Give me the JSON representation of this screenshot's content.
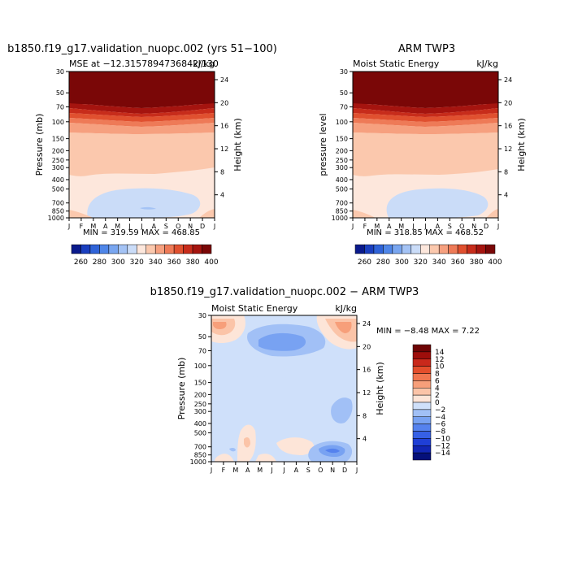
{
  "palettes": {
    "abs": [
      "#0a1a8c",
      "#1a3fbf",
      "#2f63d8",
      "#4f86e8",
      "#79a6f0",
      "#a4c3f5",
      "#cadcf8",
      "#fde7dc",
      "#fbc8ad",
      "#f6a07f",
      "#ee7a57",
      "#e0502f",
      "#c72c1b",
      "#a5140f",
      "#7a0707"
    ],
    "diff": [
      "#05107a",
      "#1226b4",
      "#1f3fd6",
      "#3660e6",
      "#5582ee",
      "#78a2f2",
      "#a1c0f6",
      "#cfe0fa",
      "#fde5d8",
      "#fbc4a8",
      "#f79f7a",
      "#f07650",
      "#e34e2c",
      "#c9291b",
      "#9e0e0b",
      "#6e0405"
    ]
  },
  "chart_data": [
    {
      "type": "contour",
      "id": "model",
      "title": "b1850.f19_g17.validation_nuopc.002 (yrs 51−100)",
      "subtitle_left": "MSE at −12.3157894736842/130",
      "subtitle_right": "kJ/kg",
      "ylabel": "Pressure (mb)",
      "ylabel_right": "Height (km)",
      "x_ticks": [
        "J",
        "F",
        "M",
        "A",
        "M",
        "J",
        "J",
        "A",
        "S",
        "O",
        "N",
        "D",
        "J"
      ],
      "y_ticks": [
        "30",
        "50",
        "70",
        "100",
        "150",
        "200",
        "250",
        "300",
        "400",
        "500",
        "700",
        "850",
        "1000"
      ],
      "y_ticks_right": [
        "24",
        "20",
        "16",
        "12",
        "8",
        "4"
      ],
      "stats": "MIN = 319.59 MAX = 468.85",
      "colorbar_labels": [
        "260",
        "280",
        "300",
        "320",
        "340",
        "360",
        "380",
        "400"
      ]
    },
    {
      "type": "contour",
      "id": "obs",
      "title": "ARM TWP3",
      "subtitle_left": "Moist Static Energy",
      "subtitle_right": "kJ/kg",
      "ylabel": "pressure level",
      "ylabel_right": "Height (km)",
      "x_ticks": [
        "J",
        "F",
        "M",
        "A",
        "M",
        "J",
        "J",
        "A",
        "S",
        "O",
        "N",
        "D",
        "J"
      ],
      "y_ticks": [
        "30",
        "50",
        "70",
        "100",
        "150",
        "200",
        "250",
        "300",
        "400",
        "500",
        "700",
        "850",
        "1000"
      ],
      "y_ticks_right": [
        "24",
        "20",
        "16",
        "12",
        "8",
        "4"
      ],
      "stats": "MIN = 318.85 MAX = 468.52",
      "colorbar_labels": [
        "260",
        "280",
        "300",
        "320",
        "340",
        "360",
        "380",
        "400"
      ]
    },
    {
      "type": "contour",
      "id": "diff",
      "title": "b1850.f19_g17.validation_nuopc.002 − ARM TWP3",
      "subtitle_left": "Moist Static Energy",
      "subtitle_right": "kJ/kg",
      "ylabel": "Pressure (mb)",
      "ylabel_right": "Height (km)",
      "x_ticks": [
        "J",
        "F",
        "M",
        "A",
        "M",
        "J",
        "J",
        "A",
        "S",
        "O",
        "N",
        "D",
        "J"
      ],
      "y_ticks": [
        "30",
        "50",
        "70",
        "100",
        "150",
        "200",
        "250",
        "300",
        "400",
        "500",
        "700",
        "850",
        "1000"
      ],
      "y_ticks_right": [
        "24",
        "20",
        "16",
        "12",
        "8",
        "4"
      ],
      "stats": "MIN =   −8.48 MAX =    7.22",
      "colorbar_labels": [
        "14",
        "12",
        "10",
        "8",
        "6",
        "4",
        "2",
        "0",
        "−2",
        "−4",
        "−6",
        "−8",
        "−10",
        "−12",
        "−14"
      ]
    }
  ]
}
